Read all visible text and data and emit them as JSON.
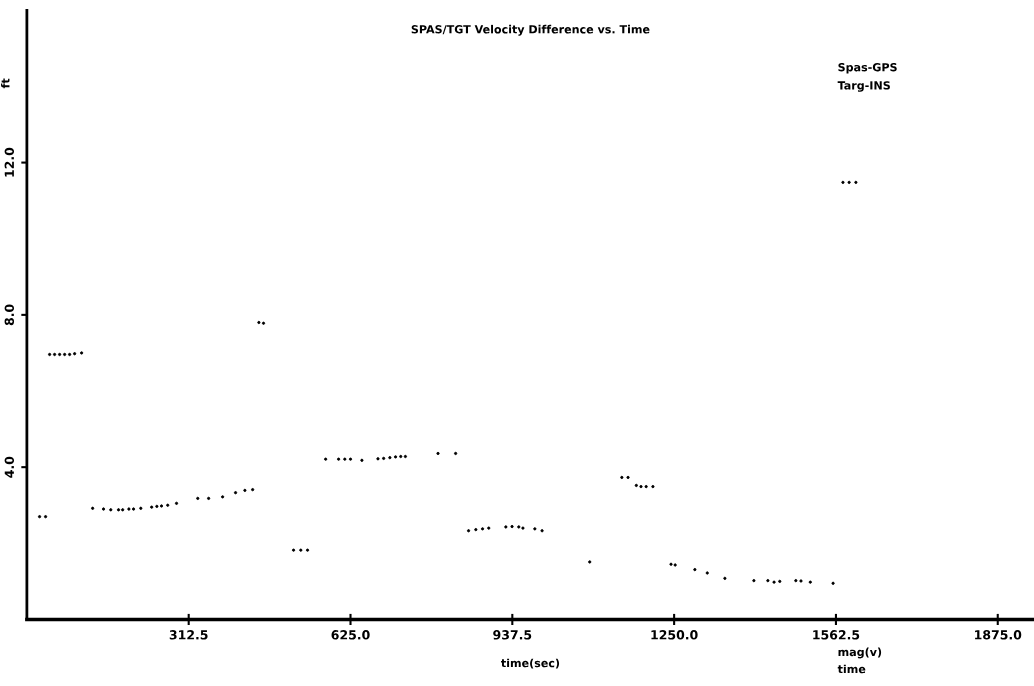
{
  "chart_data": {
    "type": "scatter",
    "title": "SPAS/TGT Velocity Difference vs. Time",
    "xlabel": "time(sec)",
    "ylabel": "ft",
    "annotations": [
      "Spas-GPS",
      "Targ-INS",
      "mag(v)",
      "time"
    ],
    "xlim": [
      0,
      1945
    ],
    "xticks": [
      {
        "value": 312.5,
        "label": "312.5"
      },
      {
        "value": 625,
        "label": "625.0"
      },
      {
        "value": 937.5,
        "label": "937.5"
      },
      {
        "value": 1250,
        "label": "1250.0"
      },
      {
        "value": 1562.5,
        "label": "1562.5"
      },
      {
        "value": 1875,
        "label": "1875.0"
      }
    ],
    "ylim": [
      0,
      16
    ],
    "yticks": [
      {
        "value": 4,
        "label": "4.0"
      },
      {
        "value": 8,
        "label": "8.0"
      },
      {
        "value": 12,
        "label": "12.0"
      }
    ],
    "grid": false,
    "series": [
      {
        "color": "#000000",
        "x": [
          24.5,
          36.1,
          43.9,
          53.5,
          63.2,
          72.9,
          82.5,
          92.2,
          105.7,
          127,
          148,
          162,
          177,
          185,
          197,
          206,
          220,
          241,
          251,
          260,
          272,
          289,
          330,
          351,
          378,
          403,
          421,
          436,
          448,
          457,
          515,
          529,
          542,
          577,
          602,
          614,
          625,
          647,
          678,
          689,
          701,
          712,
          722,
          731,
          794,
          828,
          853,
          867,
          880,
          892,
          925,
          937,
          950,
          958,
          981,
          995,
          1087,
          1149,
          1161,
          1177,
          1186,
          1196,
          1209,
          1244,
          1252,
          1290,
          1314,
          1348,
          1404,
          1431,
          1443,
          1454,
          1485,
          1495,
          1513,
          1557,
          1576,
          1588,
          1601
        ],
        "values": [
          2.7,
          2.7,
          6.96,
          6.96,
          6.96,
          6.96,
          6.96,
          6.98,
          7.0,
          2.92,
          2.9,
          2.88,
          2.88,
          2.88,
          2.9,
          2.9,
          2.92,
          2.95,
          2.97,
          2.98,
          3.0,
          3.05,
          3.18,
          3.18,
          3.22,
          3.33,
          3.39,
          3.41,
          7.8,
          7.78,
          1.82,
          1.82,
          1.82,
          4.21,
          4.21,
          4.21,
          4.21,
          4.18,
          4.22,
          4.23,
          4.25,
          4.27,
          4.28,
          4.28,
          4.36,
          4.36,
          2.33,
          2.36,
          2.38,
          2.4,
          2.43,
          2.44,
          2.43,
          2.4,
          2.38,
          2.33,
          1.51,
          3.73,
          3.73,
          3.52,
          3.49,
          3.49,
          3.49,
          1.45,
          1.43,
          1.31,
          1.22,
          1.08,
          1.02,
          1.02,
          0.98,
          1.0,
          1.02,
          1.01,
          0.98,
          0.95,
          11.48,
          11.48,
          11.48
        ]
      }
    ]
  }
}
